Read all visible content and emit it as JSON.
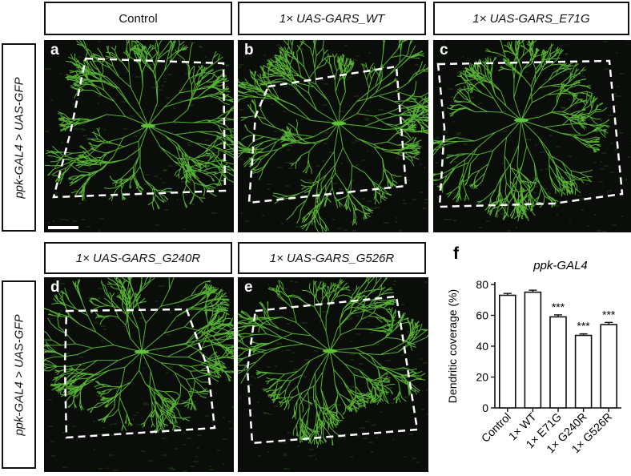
{
  "column_labels": [
    "Control",
    "1× UAS-GARS_WT",
    "1× UAS-GARS_E71G"
  ],
  "row2_labels": [
    "1× UAS-GARS_G240R",
    "1× UAS-GARS_G526R"
  ],
  "row_label": "ppk-GAL4 > UAS-GFP",
  "panel_letters": [
    "a",
    "b",
    "c",
    "d",
    "e"
  ],
  "chart_letter": "f",
  "colors": {
    "dendrite": "#5fc33a",
    "background": "#0a0d0a",
    "outline": "#ffffff"
  },
  "chart_data": {
    "type": "bar",
    "title": "ppk-GAL4",
    "ylabel": "Dendritic coverage (%)",
    "categories": [
      "Control",
      "1× WT",
      "1× E71G",
      "1× G240R",
      "1× G526R"
    ],
    "values": [
      73,
      75,
      59,
      47,
      54
    ],
    "errors": [
      1.2,
      1.3,
      1.3,
      1.0,
      1.4
    ],
    "significance": [
      "",
      "",
      "***",
      "***",
      "***"
    ],
    "ylim": [
      0,
      80
    ],
    "yticks": [
      0,
      20,
      40,
      60,
      80
    ],
    "bar_color": "#ffffff"
  }
}
